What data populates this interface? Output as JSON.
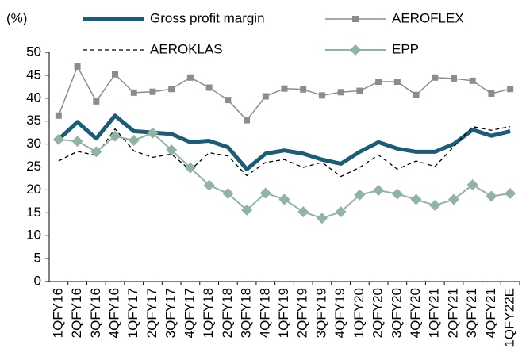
{
  "chart_data": {
    "type": "line",
    "y_label": "(%)",
    "categories": [
      "1QFY16",
      "2QFY16",
      "3QFY16",
      "4QFY16",
      "1QFY17",
      "2QFY17",
      "3QFY17",
      "4QFY17",
      "1QFY18",
      "2QFY18",
      "3QFY18",
      "4QFY18",
      "1QFY19",
      "2QFY19",
      "3QFY19",
      "4QFY19",
      "1QFY20",
      "2QFY20",
      "3QFY20",
      "4QFY20",
      "1QFY21",
      "2QFY21",
      "3QFY21",
      "4QFY21",
      "1QFY22E"
    ],
    "ylim": [
      0,
      50
    ],
    "yticks": [
      0,
      5,
      10,
      15,
      20,
      25,
      30,
      35,
      40,
      45,
      50
    ],
    "series": [
      {
        "name": "Gross profit margin",
        "color": "#1b5c76",
        "width": 5,
        "dash": "none",
        "marker": "none",
        "values": [
          31,
          34.8,
          31.2,
          36.2,
          32.8,
          32.5,
          32.2,
          30.4,
          30.7,
          29.3,
          24.5,
          27.9,
          28.6,
          27.9,
          26.6,
          25.7,
          28.3,
          30.4,
          29,
          28.3,
          28.3,
          30,
          33.1,
          31.8,
          32.8
        ]
      },
      {
        "name": "AEROFLEX",
        "color": "#8c8c8c",
        "width": 1.5,
        "dash": "none",
        "marker": "square",
        "values": [
          36.2,
          46.9,
          39.3,
          45.2,
          41.2,
          41.4,
          42.0,
          44.5,
          42.3,
          39.6,
          35.2,
          40.4,
          42.1,
          41.9,
          40.6,
          41.3,
          41.6,
          43.6,
          43.6,
          40.7,
          44.5,
          44.3,
          43.8,
          41.0,
          42.0
        ]
      },
      {
        "name": "AEROKLAS",
        "color": "#000000",
        "width": 1.3,
        "dash": "5,4",
        "marker": "none",
        "values": [
          26.3,
          28.4,
          27.5,
          33.3,
          28.5,
          27.1,
          27.8,
          24.3,
          28.1,
          27.4,
          23.1,
          26.0,
          26.6,
          24.9,
          26.0,
          22.9,
          24.9,
          27.6,
          24.5,
          26.3,
          25.1,
          29.4,
          33.8,
          33.0,
          33.8
        ]
      },
      {
        "name": "EPP",
        "color": "#91b3a4",
        "width": 2,
        "dash": "none",
        "marker": "diamond",
        "values": [
          31,
          30.6,
          28.3,
          31.7,
          30.8,
          32.4,
          28.7,
          24.8,
          21.0,
          19.2,
          15.6,
          19.3,
          17.9,
          15.2,
          13.8,
          15.2,
          18.9,
          19.9,
          19.1,
          17.9,
          16.6,
          17.9,
          21.1,
          18.6,
          19.2
        ]
      }
    ]
  }
}
